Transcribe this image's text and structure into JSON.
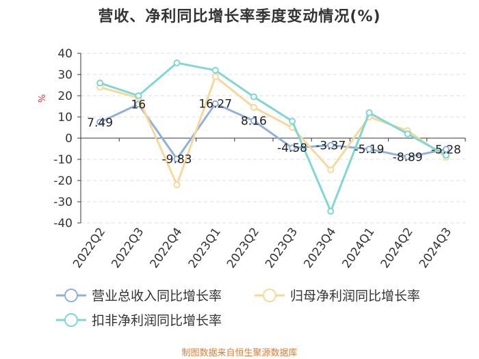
{
  "chart_data": {
    "type": "line",
    "title": "营收、净利同比增长率季度变动情况(%)",
    "ylabel": "%",
    "xlabel": "",
    "ylim": [
      -40,
      40
    ],
    "yticks": [
      40,
      30,
      20,
      10,
      0,
      -10,
      -20,
      -30,
      -40
    ],
    "categories": [
      "2022Q2",
      "2022Q3",
      "2022Q4",
      "2023Q1",
      "2023Q2",
      "2023Q3",
      "2023Q4",
      "2024Q1",
      "2024Q2",
      "2024Q3"
    ],
    "series": [
      {
        "name": "营业总收入同比增长率",
        "color": "#8fb0dc",
        "values": [
          7.49,
          16,
          -9.83,
          16.27,
          8.16,
          -4.58,
          -3.37,
          -5.19,
          -8.89,
          -5.28
        ],
        "labels": [
          "7.49",
          "16",
          "-9.83",
          "16.27",
          "8.16",
          "-4.58",
          "-3.37",
          "-5.19",
          "-8.89",
          "-5.28"
        ]
      },
      {
        "name": "归母净利润同比增长率",
        "color": "#f7d89a",
        "values": [
          24,
          19,
          -22,
          29,
          14.5,
          5,
          -15,
          10,
          3.5,
          -9
        ]
      },
      {
        "name": "扣非净利润同比增长率",
        "color": "#7fd6d6",
        "values": [
          26,
          20,
          35.5,
          32,
          19.5,
          8,
          -34.5,
          12,
          2,
          -8
        ]
      }
    ],
    "grid": true,
    "legend_position": "bottom"
  },
  "footer": "制图数据来自恒生聚源数据库"
}
